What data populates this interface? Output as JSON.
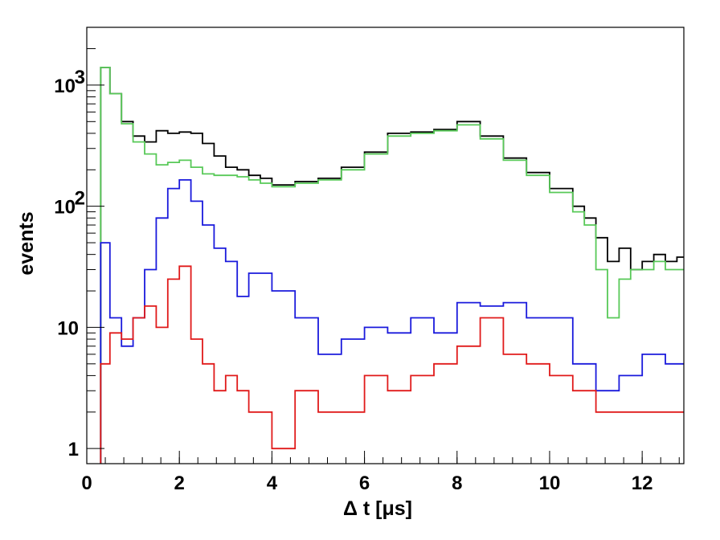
{
  "chart_data": {
    "type": "line",
    "style": "step-histogram",
    "xlabel": "Δ t [μs]",
    "ylabel": "events",
    "xlim": [
      0,
      12.9
    ],
    "ylim": [
      0.75,
      3000
    ],
    "yscale": "log",
    "grid": false,
    "legend": "none",
    "x_ticks": [
      {
        "value": 0,
        "label": "0"
      },
      {
        "value": 2,
        "label": "2"
      },
      {
        "value": 4,
        "label": "4"
      },
      {
        "value": 6,
        "label": "6"
      },
      {
        "value": 8,
        "label": "8"
      },
      {
        "value": 10,
        "label": "10"
      },
      {
        "value": 12,
        "label": "12"
      }
    ],
    "y_ticks": [
      {
        "value": 1,
        "label": "1"
      },
      {
        "value": 10,
        "label": "10"
      },
      {
        "value": 100,
        "label": "10",
        "exp": "2"
      },
      {
        "value": 1000,
        "label": "10",
        "exp": "3"
      }
    ],
    "series": [
      {
        "color": "#000000",
        "x": [
          0.3,
          0.5,
          0.75,
          1.0,
          1.25,
          1.5,
          1.75,
          2.0,
          2.25,
          2.5,
          2.75,
          3.0,
          3.25,
          3.5,
          3.75,
          4.0,
          4.5,
          5.0,
          5.5,
          6.0,
          6.5,
          7.0,
          7.5,
          8.0,
          8.5,
          9.0,
          9.5,
          10.0,
          10.5,
          10.75,
          11.0,
          11.25,
          11.5,
          11.75,
          12.0,
          12.25,
          12.5,
          12.75
        ],
        "y": [
          1400,
          850,
          500,
          380,
          340,
          420,
          400,
          410,
          400,
          330,
          260,
          210,
          200,
          180,
          170,
          150,
          160,
          170,
          210,
          280,
          400,
          410,
          430,
          500,
          380,
          250,
          190,
          140,
          100,
          80,
          55,
          35,
          45,
          30,
          35,
          40,
          35,
          38
        ]
      },
      {
        "color": "#58c958",
        "x": [
          0.3,
          0.5,
          0.75,
          1.0,
          1.25,
          1.5,
          1.75,
          2.0,
          2.25,
          2.5,
          2.75,
          3.0,
          3.25,
          3.5,
          3.75,
          4.0,
          4.5,
          5.0,
          5.5,
          6.0,
          6.5,
          7.0,
          7.5,
          8.0,
          8.5,
          9.0,
          9.5,
          10.0,
          10.5,
          10.75,
          11.0,
          11.25,
          11.5,
          11.75,
          12.0,
          12.25,
          12.5,
          12.75
        ],
        "y": [
          1400,
          850,
          480,
          340,
          270,
          220,
          230,
          240,
          210,
          185,
          180,
          180,
          175,
          165,
          155,
          145,
          155,
          165,
          200,
          270,
          380,
          400,
          420,
          470,
          360,
          240,
          180,
          130,
          90,
          70,
          30,
          12,
          25,
          30,
          30,
          35,
          30,
          30
        ]
      },
      {
        "color": "#1a1adc",
        "x": [
          0.3,
          0.5,
          0.75,
          1.0,
          1.25,
          1.5,
          1.75,
          2.0,
          2.25,
          2.5,
          2.75,
          3.0,
          3.25,
          3.5,
          4.0,
          4.5,
          5.0,
          5.5,
          6.0,
          6.5,
          7.0,
          7.5,
          8.0,
          8.5,
          9.0,
          9.5,
          10.0,
          10.5,
          11.0,
          11.5,
          12.0,
          12.5
        ],
        "y": [
          50,
          12,
          7,
          12,
          30,
          80,
          140,
          165,
          110,
          70,
          45,
          35,
          18,
          28,
          20,
          12,
          6,
          8,
          10,
          9,
          12,
          9,
          16,
          15,
          16,
          12,
          12,
          5,
          3,
          4,
          6,
          5
        ]
      },
      {
        "color": "#e01a1a",
        "x": [
          0.3,
          0.5,
          0.75,
          1.0,
          1.25,
          1.5,
          1.75,
          2.0,
          2.25,
          2.5,
          2.75,
          3.0,
          3.25,
          3.5,
          4.0,
          4.5,
          5.0,
          5.5,
          6.0,
          6.5,
          7.0,
          7.5,
          8.0,
          8.5,
          9.0,
          9.5,
          10.0,
          10.5,
          11.0,
          11.5,
          12.0,
          12.5
        ],
        "y": [
          5,
          9,
          8,
          12,
          15,
          10,
          25,
          32,
          8,
          5,
          3,
          4,
          3,
          2,
          1,
          3,
          2,
          2,
          4,
          3,
          4,
          5,
          7,
          12,
          6,
          5,
          4,
          3,
          2,
          2,
          2,
          2
        ]
      }
    ]
  }
}
